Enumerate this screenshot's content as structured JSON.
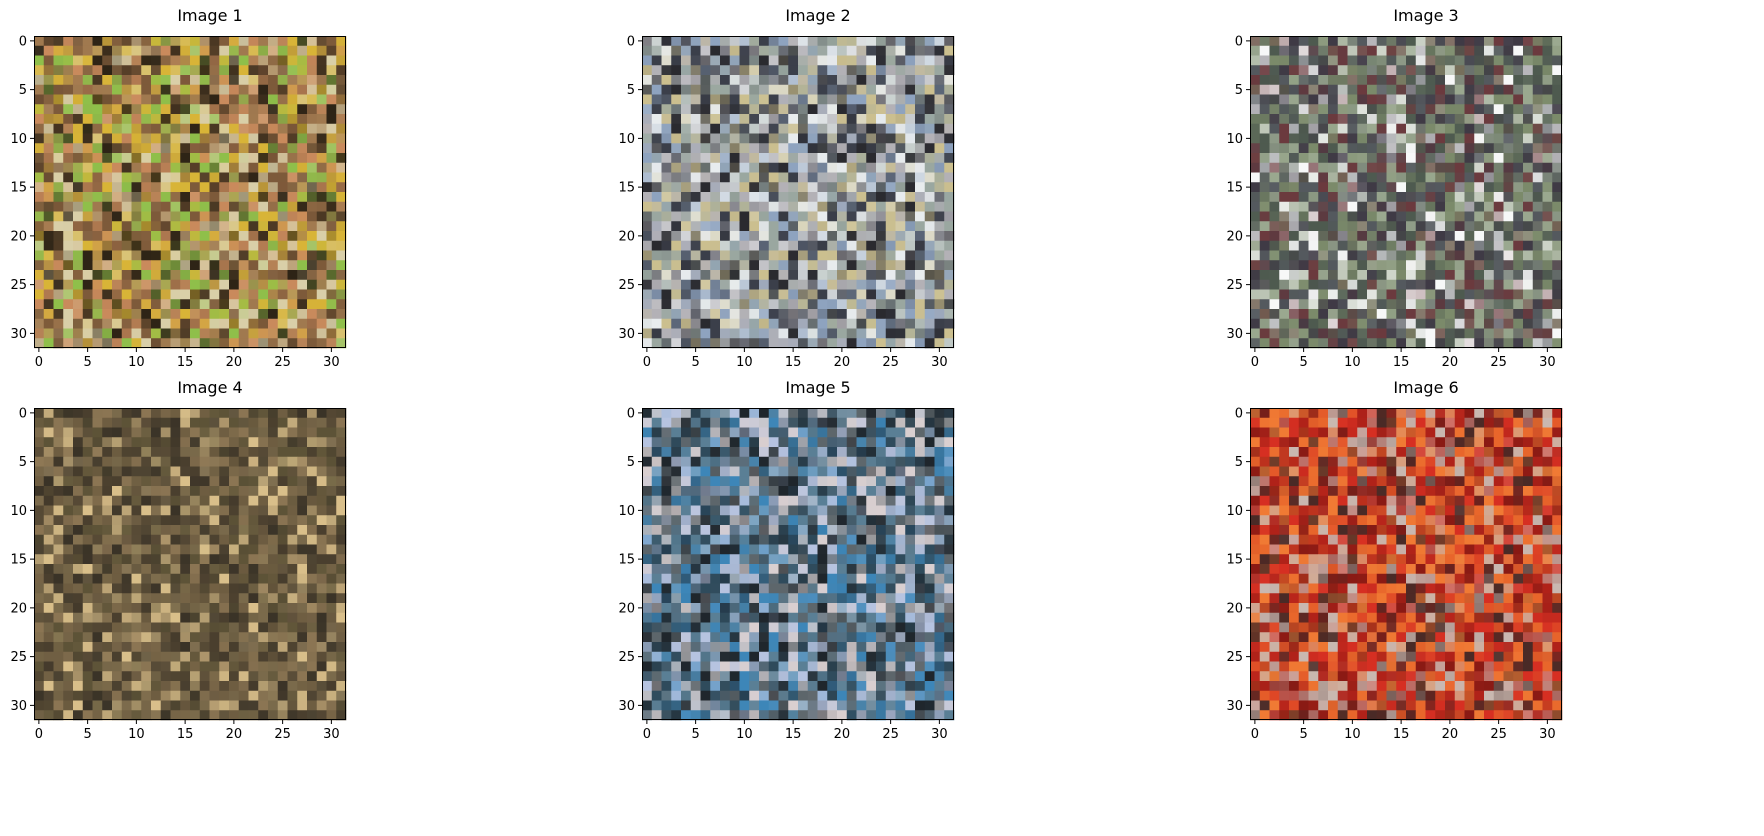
{
  "chart_data": [
    {
      "type": "heatmap",
      "title": "Image 1",
      "xlabel": "",
      "ylabel": "",
      "xlim": [
        -0.5,
        31.5
      ],
      "ylim": [
        31.5,
        -0.5
      ],
      "xticks": [
        "0",
        "5",
        "10",
        "15",
        "20",
        "25",
        "30"
      ],
      "yticks": [
        "0",
        "5",
        "10",
        "15",
        "20",
        "25",
        "30"
      ],
      "grid": false,
      "content": "32x32 RGB pixel image",
      "dominant_colors": [
        "#7d5a3a",
        "#a0794f",
        "#d9cfa8",
        "#c98a5c",
        "#d8b437",
        "#8fbf4a",
        "#2e2416"
      ]
    },
    {
      "type": "heatmap",
      "title": "Image 2",
      "xlabel": "",
      "ylabel": "",
      "xlim": [
        -0.5,
        31.5
      ],
      "ylim": [
        31.5,
        -0.5
      ],
      "xticks": [
        "0",
        "5",
        "10",
        "15",
        "20",
        "25",
        "30"
      ],
      "yticks": [
        "0",
        "5",
        "10",
        "15",
        "20",
        "25",
        "30"
      ],
      "grid": false,
      "content": "32x32 RGB pixel image",
      "dominant_colors": [
        "#9aa7a0",
        "#e8ecee",
        "#8ea3bf",
        "#cbbf8f",
        "#3b3f4a",
        "#b3b1b6",
        "#2a2a2f"
      ]
    },
    {
      "type": "heatmap",
      "title": "Image 3",
      "xlabel": "",
      "ylabel": "",
      "xlim": [
        -0.5,
        31.5
      ],
      "ylim": [
        31.5,
        -0.5
      ],
      "xticks": [
        "0",
        "5",
        "10",
        "15",
        "20",
        "25",
        "30"
      ],
      "yticks": [
        "0",
        "5",
        "10",
        "15",
        "20",
        "25",
        "30"
      ],
      "grid": false,
      "content": "32x32 RGB pixel image",
      "dominant_colors": [
        "#f7f8f8",
        "#4e5a4f",
        "#6b3a3e",
        "#7b8a6a",
        "#54595e",
        "#3f3a45",
        "#9aa88f"
      ]
    },
    {
      "type": "heatmap",
      "title": "Image 4",
      "xlabel": "",
      "ylabel": "",
      "xlim": [
        -0.5,
        31.5
      ],
      "ylim": [
        31.5,
        -0.5
      ],
      "xticks": [
        "0",
        "5",
        "10",
        "15",
        "20",
        "25",
        "30"
      ],
      "yticks": [
        "0",
        "5",
        "10",
        "15",
        "20",
        "25",
        "30"
      ],
      "grid": false,
      "content": "32x32 RGB pixel image",
      "dominant_colors": [
        "#6e5d41",
        "#5d5337",
        "#8b7553",
        "#d9bf8a",
        "#4a3f2e",
        "#7a6a4b",
        "#3a3327"
      ]
    },
    {
      "type": "heatmap",
      "title": "Image 5",
      "xlabel": "",
      "ylabel": "",
      "xlim": [
        -0.5,
        31.5
      ],
      "ylim": [
        31.5,
        -0.5
      ],
      "xticks": [
        "0",
        "5",
        "10",
        "15",
        "20",
        "25",
        "30"
      ],
      "yticks": [
        "0",
        "5",
        "10",
        "15",
        "20",
        "25",
        "30"
      ],
      "grid": false,
      "content": "32x32 RGB pixel image",
      "dominant_colors": [
        "#b6c3e0",
        "#5a7f95",
        "#2f4b5c",
        "#d9cfd0",
        "#3d86b8",
        "#1f262c",
        "#5d666b"
      ]
    },
    {
      "type": "heatmap",
      "title": "Image 6",
      "xlabel": "",
      "ylabel": "",
      "xlim": [
        -0.5,
        31.5
      ],
      "ylim": [
        31.5,
        -0.5
      ],
      "xticks": [
        "0",
        "5",
        "10",
        "15",
        "20",
        "25",
        "30"
      ],
      "yticks": [
        "0",
        "5",
        "10",
        "15",
        "20",
        "25",
        "30"
      ],
      "grid": false,
      "content": "32x32 RGB pixel image",
      "dominant_colors": [
        "#d62f22",
        "#b02219",
        "#e8662b",
        "#4a2a26",
        "#c9b8b0",
        "#8a1a14",
        "#f07a34"
      ]
    }
  ]
}
